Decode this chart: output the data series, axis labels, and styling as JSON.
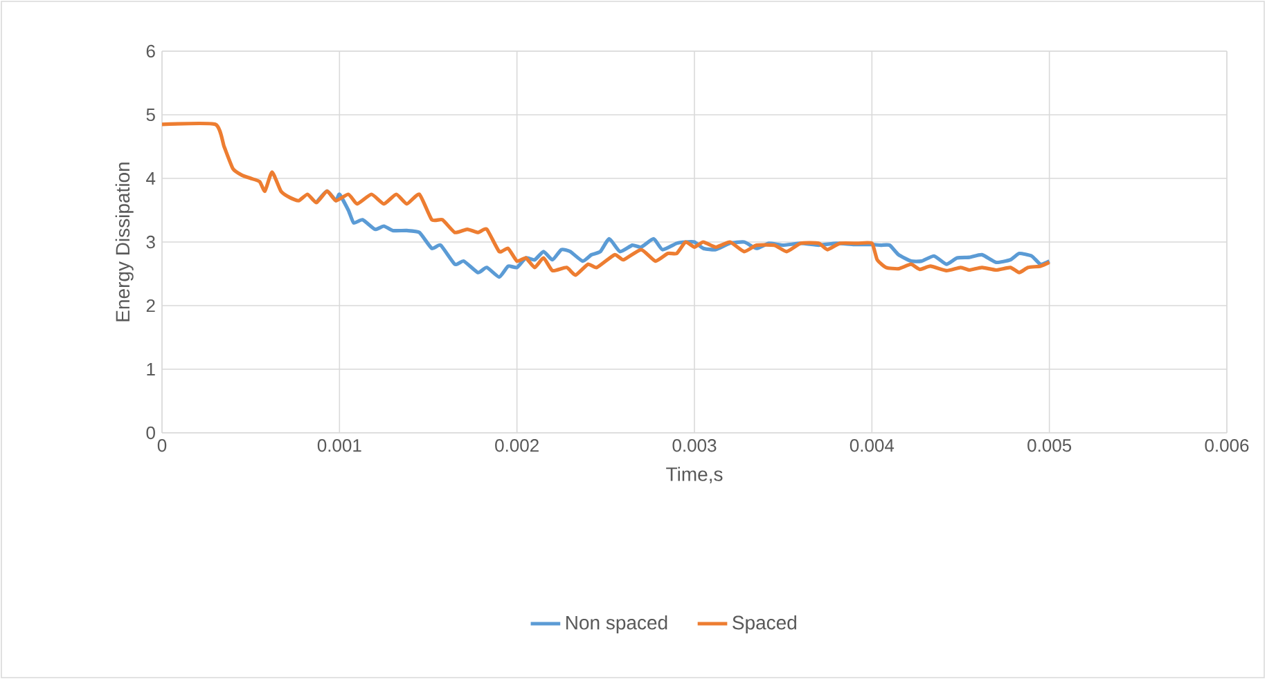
{
  "chart_data": {
    "type": "line",
    "xlabel": "Time,s",
    "ylabel": "Energy Dissipation",
    "xlim": [
      0,
      0.006
    ],
    "xticks": [
      0,
      0.001,
      0.002,
      0.003,
      0.004,
      0.005,
      0.006
    ],
    "ylim": [
      0,
      6
    ],
    "yticks": [
      0,
      1,
      2,
      3,
      4,
      5,
      6
    ],
    "grid": true,
    "legend": "bottom",
    "marker": "none",
    "line_style": "solid",
    "series": [
      {
        "name": "Non spaced",
        "color": "#5b9bd5",
        "x": [
          0.00087,
          0.00093,
          0.00098,
          0.001,
          0.00105,
          0.00108,
          0.00113,
          0.0012,
          0.00125,
          0.0013,
          0.00138,
          0.00145,
          0.00152,
          0.00157,
          0.00165,
          0.0017,
          0.00178,
          0.00183,
          0.0019,
          0.00195,
          0.002,
          0.00205,
          0.0021,
          0.00215,
          0.0022,
          0.00225,
          0.0023,
          0.00237,
          0.00242,
          0.00247,
          0.00252,
          0.00258,
          0.00265,
          0.0027,
          0.00277,
          0.00282,
          0.0029,
          0.00295,
          0.003,
          0.00305,
          0.00312,
          0.0032,
          0.00328,
          0.00335,
          0.00342,
          0.0035,
          0.0036,
          0.0037,
          0.0038,
          0.0039,
          0.004,
          0.00405,
          0.0041,
          0.00415,
          0.00422,
          0.00428,
          0.00435,
          0.00442,
          0.00448,
          0.00455,
          0.00462,
          0.0047,
          0.00478,
          0.00483,
          0.0049,
          0.00495,
          0.005
        ],
        "values": [
          3.62,
          3.8,
          3.65,
          3.75,
          3.5,
          3.3,
          3.35,
          3.2,
          3.25,
          3.18,
          3.18,
          3.15,
          2.9,
          2.95,
          2.65,
          2.7,
          2.52,
          2.6,
          2.45,
          2.62,
          2.6,
          2.75,
          2.72,
          2.85,
          2.72,
          2.88,
          2.85,
          2.7,
          2.8,
          2.85,
          3.05,
          2.85,
          2.95,
          2.92,
          3.05,
          2.88,
          2.98,
          3.0,
          3.0,
          2.9,
          2.88,
          2.98,
          3.0,
          2.9,
          2.98,
          2.95,
          2.98,
          2.95,
          2.98,
          2.96,
          2.96,
          2.95,
          2.95,
          2.8,
          2.7,
          2.7,
          2.78,
          2.65,
          2.75,
          2.76,
          2.8,
          2.68,
          2.72,
          2.82,
          2.78,
          2.65,
          2.7
        ]
      },
      {
        "name": "Spaced",
        "color": "#ed7d31",
        "x": [
          0,
          0.0003,
          0.00035,
          0.0004,
          0.00045,
          0.0005,
          0.00055,
          0.00058,
          0.00062,
          0.00067,
          0.00072,
          0.00077,
          0.00082,
          0.00087,
          0.00093,
          0.00098,
          0.00105,
          0.0011,
          0.00118,
          0.00125,
          0.00132,
          0.00138,
          0.00145,
          0.00152,
          0.00158,
          0.00165,
          0.00172,
          0.00178,
          0.00183,
          0.0019,
          0.00195,
          0.002,
          0.00205,
          0.0021,
          0.00215,
          0.0022,
          0.00228,
          0.00233,
          0.0024,
          0.00245,
          0.00255,
          0.0026,
          0.0027,
          0.00278,
          0.00285,
          0.0029,
          0.00295,
          0.003,
          0.00305,
          0.00312,
          0.0032,
          0.00328,
          0.00335,
          0.00345,
          0.00352,
          0.0036,
          0.0037,
          0.00375,
          0.00382,
          0.00392,
          0.004,
          0.00403,
          0.00408,
          0.00415,
          0.00422,
          0.00427,
          0.00433,
          0.00442,
          0.0045,
          0.00455,
          0.00462,
          0.0047,
          0.00478,
          0.00483,
          0.00488,
          0.00495,
          0.005
        ],
        "values": [
          4.85,
          4.85,
          4.5,
          4.15,
          4.05,
          4.0,
          3.95,
          3.8,
          4.1,
          3.8,
          3.7,
          3.65,
          3.75,
          3.62,
          3.8,
          3.65,
          3.75,
          3.6,
          3.75,
          3.6,
          3.75,
          3.6,
          3.75,
          3.35,
          3.35,
          3.15,
          3.2,
          3.15,
          3.2,
          2.85,
          2.9,
          2.7,
          2.75,
          2.6,
          2.75,
          2.55,
          2.6,
          2.48,
          2.65,
          2.6,
          2.8,
          2.72,
          2.88,
          2.7,
          2.82,
          2.82,
          3.0,
          2.92,
          3.0,
          2.92,
          3.0,
          2.85,
          2.95,
          2.95,
          2.85,
          2.98,
          2.98,
          2.88,
          2.98,
          2.98,
          2.98,
          2.72,
          2.6,
          2.58,
          2.65,
          2.57,
          2.62,
          2.55,
          2.6,
          2.56,
          2.6,
          2.56,
          2.6,
          2.52,
          2.6,
          2.62,
          2.68
        ]
      }
    ]
  }
}
